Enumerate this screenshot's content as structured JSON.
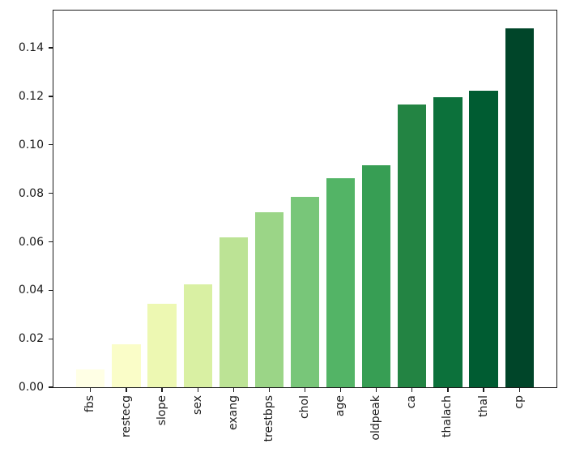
{
  "chart_data": {
    "type": "bar",
    "title": "",
    "xlabel": "",
    "ylabel": "",
    "categories": [
      "fbs",
      "restecg",
      "slope",
      "sex",
      "exang",
      "trestbps",
      "chol",
      "age",
      "oldpeak",
      "ca",
      "thalach",
      "thal",
      "cp"
    ],
    "values": [
      0.0074,
      0.0177,
      0.0343,
      0.0423,
      0.0617,
      0.0723,
      0.0787,
      0.0861,
      0.0917,
      0.1167,
      0.1197,
      0.1223,
      0.148
    ],
    "bar_colors": [
      "#ffffe5",
      "#fafdc8",
      "#edf8b2",
      "#d9f0a3",
      "#bce395",
      "#9bd587",
      "#78c679",
      "#53b466",
      "#379e54",
      "#238443",
      "#0c713b",
      "#005c32",
      "#004529"
    ],
    "colormap": "YlGn",
    "ylim": [
      0,
      0.1554
    ],
    "xlim": [
      -1.04,
      13.04
    ],
    "bar_width": 0.8,
    "ytick_labels": [
      "0.00",
      "0.02",
      "0.04",
      "0.06",
      "0.08",
      "0.10",
      "0.12",
      "0.14"
    ],
    "ytick_values": [
      0.0,
      0.02,
      0.04,
      0.06,
      0.08,
      0.1,
      0.12,
      0.14
    ],
    "x_tick_rotation_deg": 90,
    "grid": false,
    "legend": null,
    "spine_color": "#1b1b1b",
    "background_color": "#ffffff"
  }
}
